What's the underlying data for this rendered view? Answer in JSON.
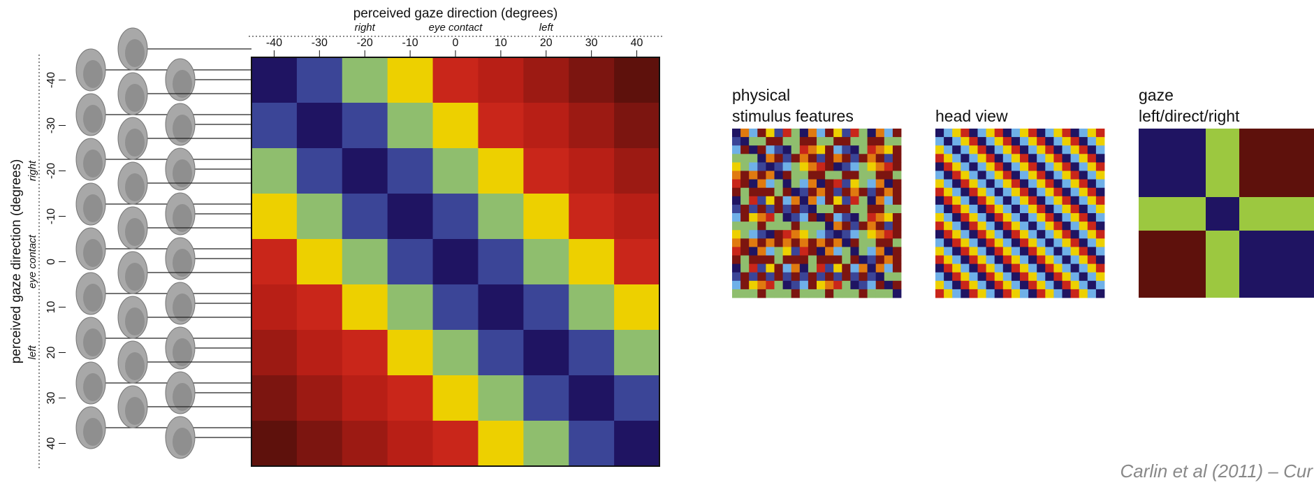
{
  "chart_data": {
    "type": "heatmap",
    "x_label": "perceived gaze direction (degrees)",
    "y_label": "perceived gaze direction (degrees)",
    "x": [
      -40,
      -30,
      -20,
      -10,
      0,
      10,
      20,
      30,
      40
    ],
    "y": [
      -40,
      -30,
      -20,
      -10,
      0,
      10,
      20,
      30,
      40
    ],
    "xticks": [
      -40,
      -30,
      -20,
      -10,
      0,
      10,
      20,
      30,
      40
    ],
    "yticks": [
      -40,
      -30,
      -20,
      -10,
      0,
      10,
      20,
      30,
      40
    ],
    "annotations": [
      {
        "text": "right",
        "at": -20
      },
      {
        "text": "eye contact",
        "at": 0
      },
      {
        "text": "left",
        "at": 20
      }
    ],
    "values": [
      [
        0,
        1,
        2,
        3,
        4,
        5,
        6,
        7,
        8
      ],
      [
        1,
        0,
        1,
        2,
        3,
        4,
        5,
        6,
        7
      ],
      [
        2,
        1,
        0,
        1,
        2,
        3,
        4,
        5,
        6
      ],
      [
        3,
        2,
        1,
        0,
        1,
        2,
        3,
        4,
        5
      ],
      [
        4,
        3,
        2,
        1,
        0,
        1,
        2,
        3,
        4
      ],
      [
        5,
        4,
        3,
        2,
        1,
        0,
        1,
        2,
        3
      ],
      [
        6,
        5,
        4,
        3,
        2,
        1,
        0,
        1,
        2
      ],
      [
        7,
        6,
        5,
        4,
        3,
        2,
        1,
        0,
        1
      ],
      [
        8,
        7,
        6,
        5,
        4,
        3,
        2,
        1,
        0
      ]
    ],
    "colors": [
      "#1f1462",
      "#3b4597",
      "#8fbe6e",
      "#edd000",
      "#c9261a",
      "#b81f16",
      "#9c1a13",
      "#7c1510",
      "#5e110c"
    ]
  },
  "model_panels": [
    {
      "title_lines": [
        "physical",
        "stimulus features"
      ]
    },
    {
      "title_lines": [
        "head view"
      ]
    },
    {
      "title_lines": [
        "gaze",
        "left/direct/right"
      ]
    }
  ],
  "citation": "Carlin et al (2011) – Cur"
}
